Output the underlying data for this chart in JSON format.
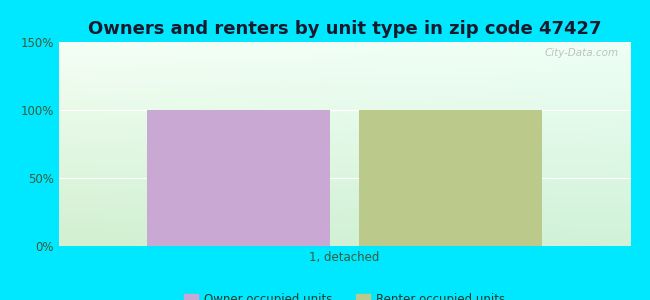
{
  "title": "Owners and renters by unit type in zip code 47427",
  "categories": [
    "1, detached"
  ],
  "owner_values": [
    100
  ],
  "renter_values": [
    100
  ],
  "owner_color": "#c9a8d4",
  "renter_color": "#bbc98a",
  "ylim": [
    0,
    150
  ],
  "yticks": [
    0,
    50,
    100,
    150
  ],
  "ytick_labels": [
    "0%",
    "50%",
    "100%",
    "150%"
  ],
  "background_outer": "#00e8ff",
  "title_fontsize": 13,
  "legend_owner": "Owner occupied units",
  "legend_renter": "Renter occupied units",
  "watermark": "City-Data.com",
  "bar_width": 0.32,
  "bar_gap": 0.05,
  "xlim": [
    -0.5,
    0.5
  ]
}
